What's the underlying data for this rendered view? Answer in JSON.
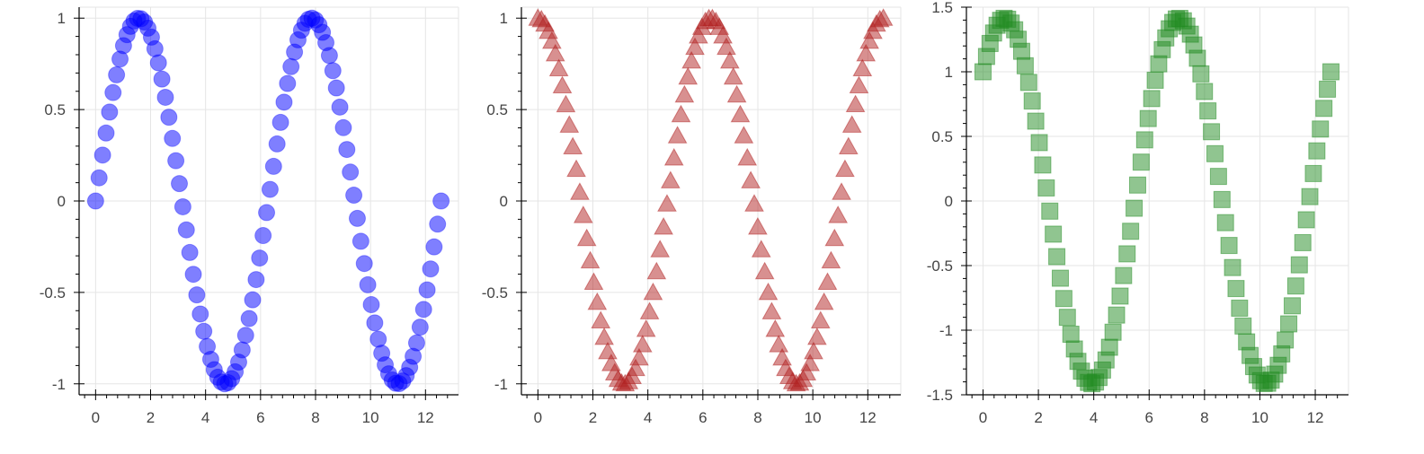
{
  "chart_data": [
    {
      "type": "scatter",
      "title": "",
      "xlabel": "",
      "ylabel": "",
      "function": "y = sin(x)",
      "marker": "circle",
      "color": "#0000ff",
      "fill_alpha": 0.5,
      "x_range": [
        0,
        12.5664
      ],
      "n_points": 100,
      "xlim": [
        -0.6,
        13.2
      ],
      "ylim": [
        -1.06,
        1.06
      ],
      "xticks": [
        0,
        2,
        4,
        6,
        8,
        10,
        12
      ],
      "xtick_labels": [
        "0",
        "2",
        "4",
        "6",
        "8",
        "10",
        "12"
      ],
      "yticks": [
        -1,
        -0.5,
        0,
        0.5,
        1
      ],
      "ytick_labels": [
        "-1",
        "-0.5",
        "0",
        "0.5",
        "1"
      ],
      "grid": true
    },
    {
      "type": "scatter",
      "title": "",
      "xlabel": "",
      "ylabel": "",
      "function": "y = cos(x)",
      "marker": "triangle",
      "color": "#b22222",
      "fill_alpha": 0.5,
      "x_range": [
        0,
        12.5664
      ],
      "n_points": 100,
      "xlim": [
        -0.6,
        13.2
      ],
      "ylim": [
        -1.06,
        1.06
      ],
      "xticks": [
        0,
        2,
        4,
        6,
        8,
        10,
        12
      ],
      "xtick_labels": [
        "0",
        "2",
        "4",
        "6",
        "8",
        "10",
        "12"
      ],
      "yticks": [
        -1,
        -0.5,
        0,
        0.5,
        1
      ],
      "ytick_labels": [
        "-1",
        "-0.5",
        "0",
        "0.5",
        "1"
      ],
      "grid": true
    },
    {
      "type": "scatter",
      "title": "",
      "xlabel": "",
      "ylabel": "",
      "function": "y = sin(x) + cos(x)",
      "marker": "square",
      "color": "#228b22",
      "fill_alpha": 0.5,
      "x_range": [
        0,
        12.5664
      ],
      "n_points": 100,
      "xlim": [
        -0.6,
        13.2
      ],
      "ylim": [
        -1.5,
        1.5
      ],
      "xticks": [
        0,
        2,
        4,
        6,
        8,
        10,
        12
      ],
      "xtick_labels": [
        "0",
        "2",
        "4",
        "6",
        "8",
        "10",
        "12"
      ],
      "yticks": [
        -1.5,
        -1,
        -0.5,
        0,
        0.5,
        1,
        1.5
      ],
      "ytick_labels": [
        "-1.5",
        "-1",
        "-0.5",
        "0",
        "0.5",
        "1",
        "1.5"
      ],
      "grid": true
    }
  ]
}
